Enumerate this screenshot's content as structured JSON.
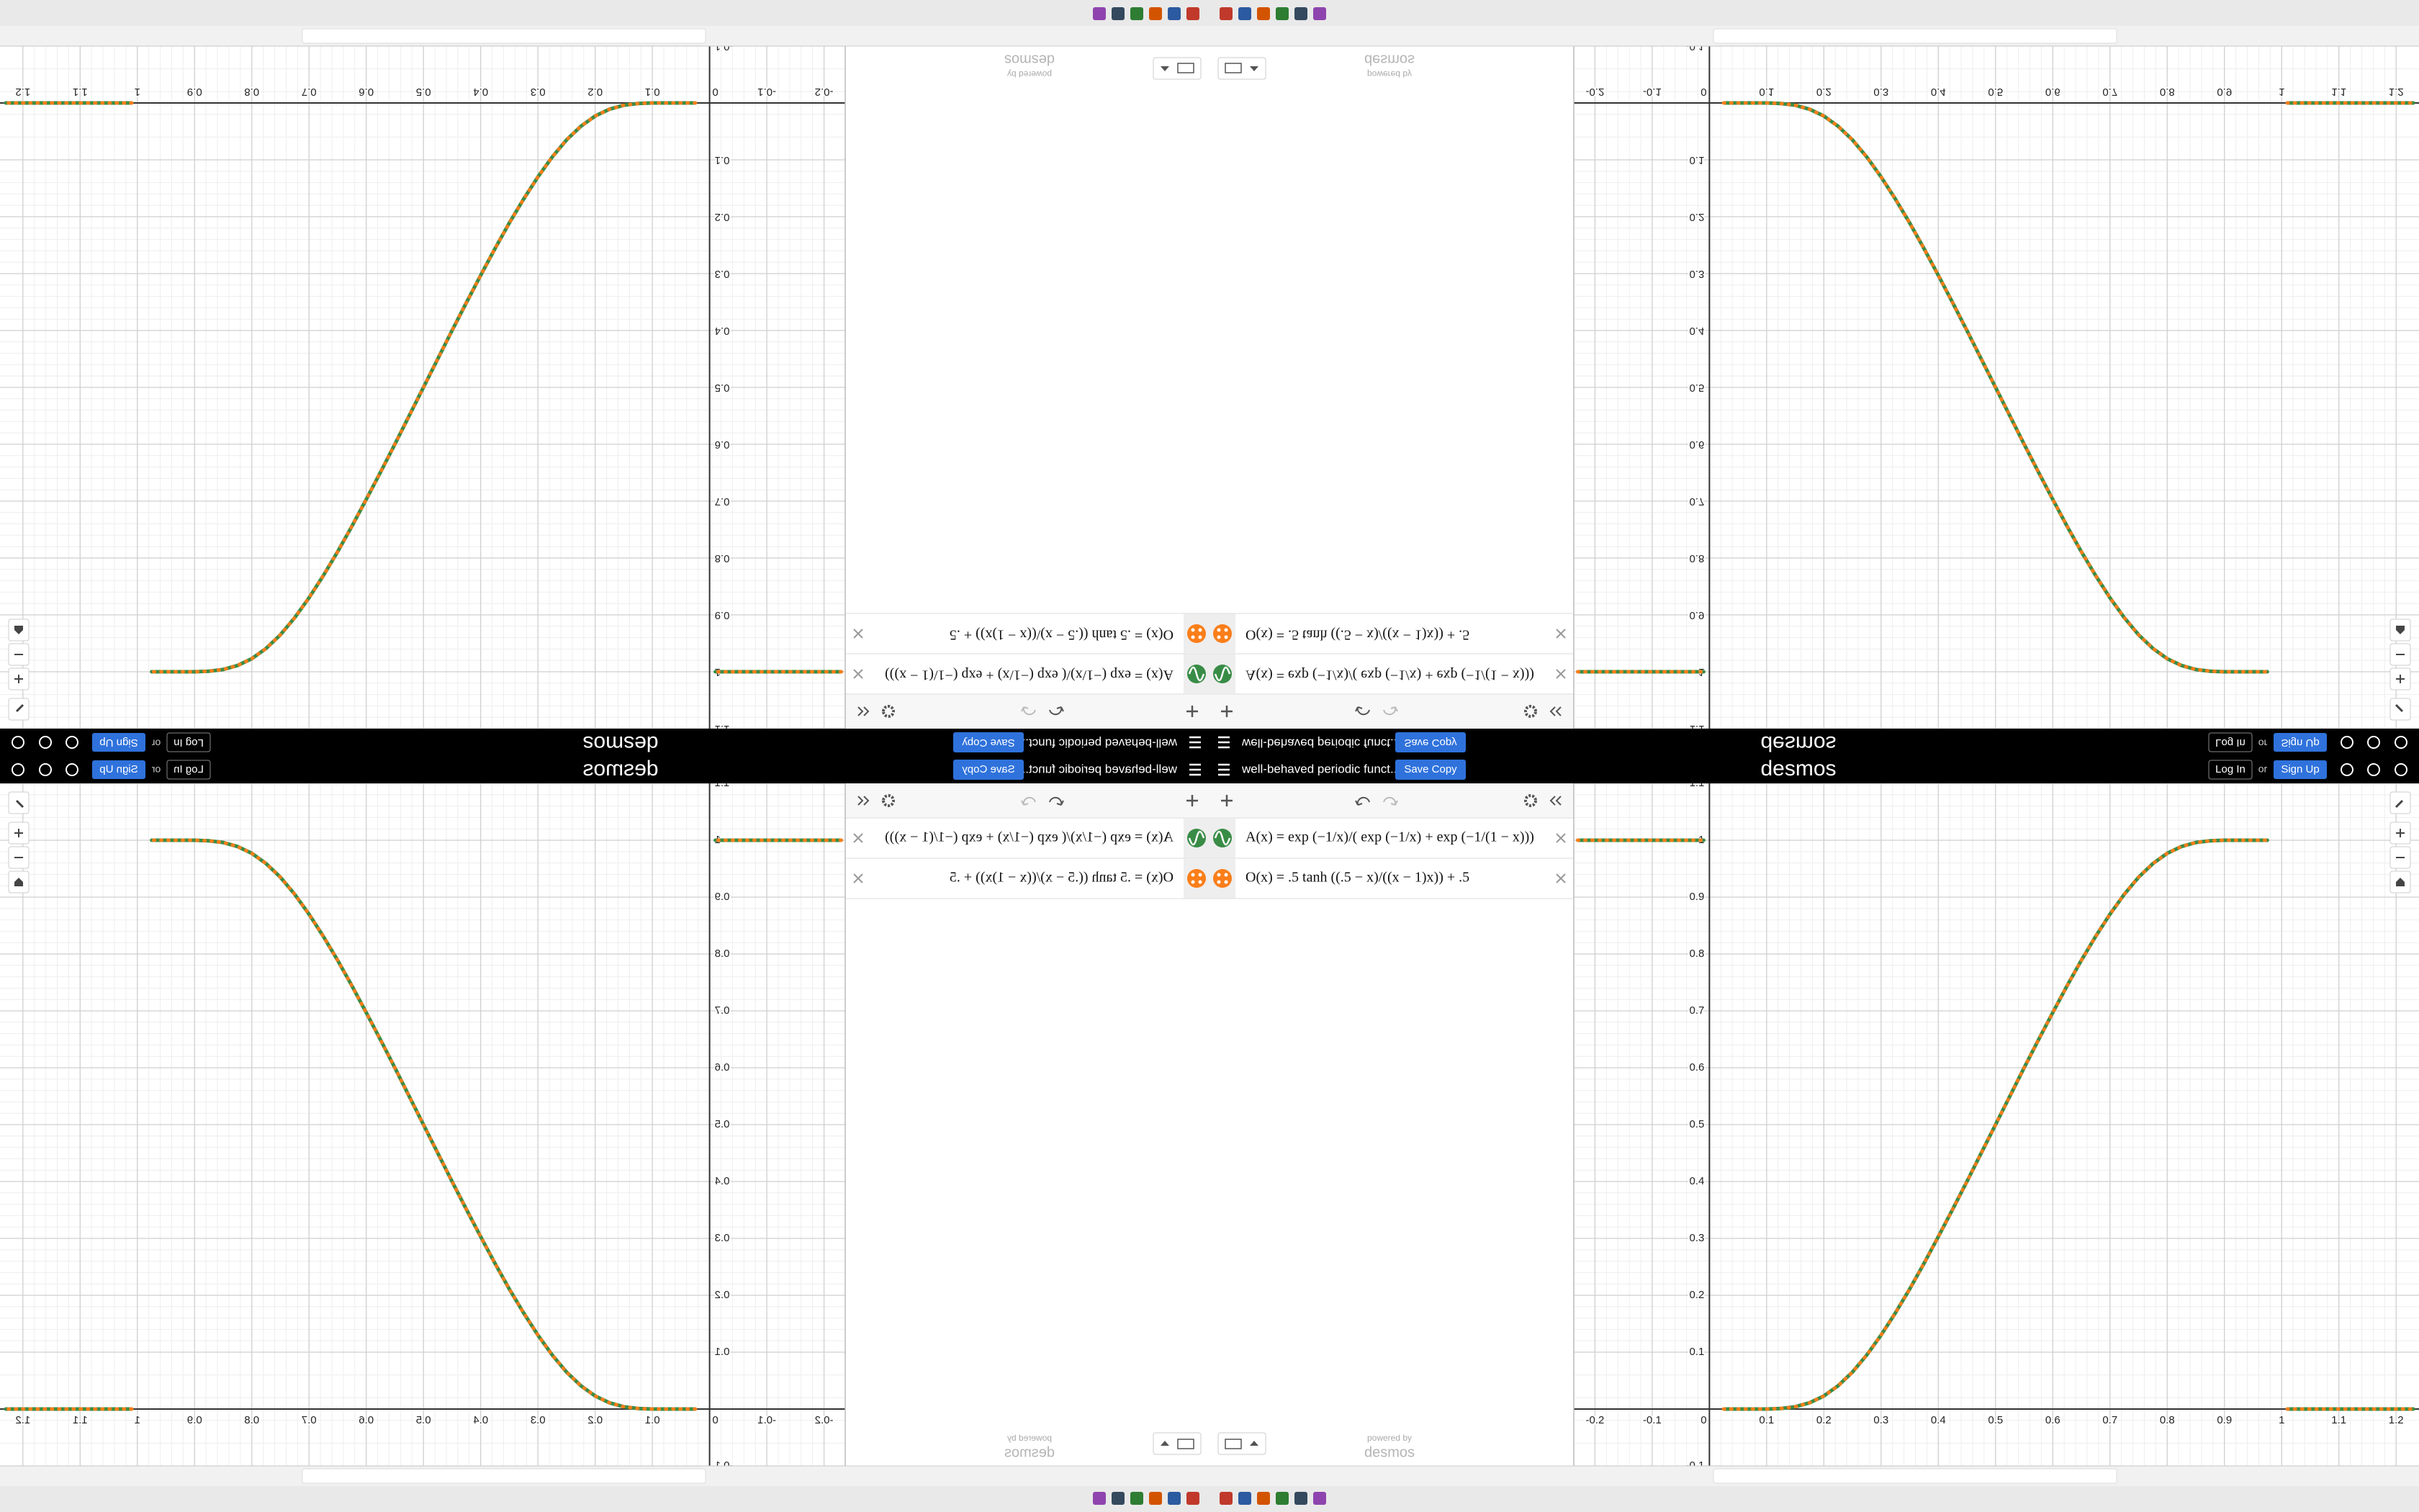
{
  "header": {
    "title": "well-behaved periodic funct...",
    "save": "Save Copy",
    "logo": "desmos",
    "login": "Log In",
    "or": "or",
    "signup": "Sign Up"
  },
  "expressions": [
    {
      "text": "A(x) = exp (−1/x)/( exp (−1/x) + exp (−1/(1 − x)))",
      "color": "#388c46"
    },
    {
      "text": "O(x) = .5 tanh ((.5 − x)/((x − 1)x)) + .5",
      "color": "#fa7e19"
    }
  ],
  "footer": {
    "powered": "powered by",
    "logo": "desmos"
  },
  "graph": {
    "type": "line",
    "xlim": [
      -0.237,
      1.24
    ],
    "ylim": [
      -0.1,
      1.1
    ],
    "xticks": [
      -0.2,
      -0.1,
      0,
      0.1,
      0.2,
      0.3,
      0.4,
      0.5,
      0.6,
      0.7,
      0.8,
      0.9,
      1,
      1.1,
      1.2
    ],
    "yticks": [
      -0.1,
      0.1,
      0.2,
      0.3,
      0.4,
      0.5,
      0.6,
      0.7,
      0.8,
      0.9,
      1,
      1.1
    ],
    "grid": true,
    "x": [
      -0.23,
      -0.01,
      0,
      0.025,
      0.05,
      0.075,
      0.1,
      0.125,
      0.15,
      0.175,
      0.2,
      0.225,
      0.25,
      0.275,
      0.3,
      0.325,
      0.35,
      0.375,
      0.4,
      0.425,
      0.45,
      0.475,
      0.5,
      0.525,
      0.55,
      0.575,
      0.6,
      0.625,
      0.65,
      0.675,
      0.7,
      0.725,
      0.75,
      0.775,
      0.8,
      0.825,
      0.85,
      0.875,
      0.9,
      0.925,
      0.95,
      0.975,
      1,
      1.01,
      1.23
    ],
    "series": [
      {
        "name": "A(x)",
        "color": "#388c46",
        "values": [
          1,
          1,
          null,
          0,
          0,
          0,
          0,
          0.001,
          0.004,
          0.011,
          0.023,
          0.041,
          0.065,
          0.095,
          0.13,
          0.169,
          0.211,
          0.256,
          0.303,
          0.351,
          0.4,
          0.45,
          0.5,
          0.55,
          0.6,
          0.649,
          0.697,
          0.744,
          0.789,
          0.831,
          0.87,
          0.905,
          0.935,
          0.959,
          0.977,
          0.989,
          0.996,
          0.999,
          1,
          1,
          1,
          1,
          null,
          0,
          0
        ]
      },
      {
        "name": "O(x)",
        "color": "#fa7e19",
        "values": [
          1,
          1,
          null,
          0,
          0,
          0,
          0,
          0.001,
          0.004,
          0.011,
          0.023,
          0.041,
          0.065,
          0.095,
          0.13,
          0.169,
          0.211,
          0.256,
          0.303,
          0.351,
          0.4,
          0.45,
          0.5,
          0.55,
          0.6,
          0.649,
          0.697,
          0.744,
          0.789,
          0.831,
          0.87,
          0.905,
          0.935,
          0.959,
          0.977,
          0.989,
          0.996,
          0.999,
          1,
          1,
          1,
          1,
          null,
          0,
          0
        ]
      }
    ]
  }
}
